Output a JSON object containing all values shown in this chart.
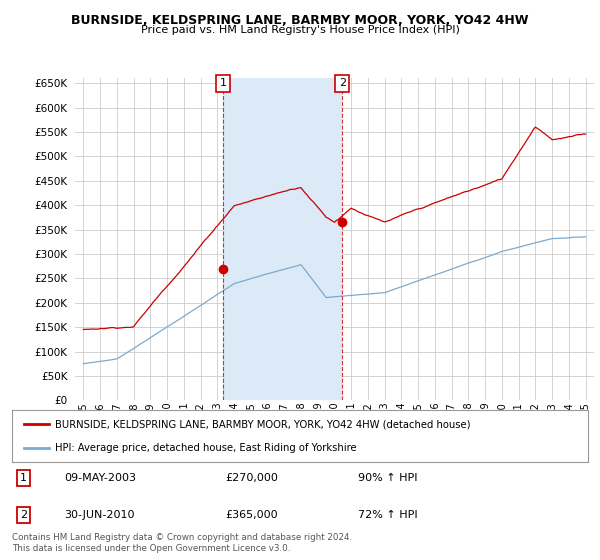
{
  "title": "BURNSIDE, KELDSPRING LANE, BARMBY MOOR, YORK, YO42 4HW",
  "subtitle": "Price paid vs. HM Land Registry's House Price Index (HPI)",
  "background_color": "#ffffff",
  "plot_bg_color": "#ffffff",
  "shade_color": "#dce9f7",
  "red_line_label": "BURNSIDE, KELDSPRING LANE, BARMBY MOOR, YORK, YO42 4HW (detached house)",
  "blue_line_label": "HPI: Average price, detached house, East Riding of Yorkshire",
  "sale1_date": "09-MAY-2003",
  "sale1_price": 270000,
  "sale1_hpi": "90% ↑ HPI",
  "sale2_date": "30-JUN-2010",
  "sale2_price": 365000,
  "sale2_hpi": "72% ↑ HPI",
  "footer": "Contains HM Land Registry data © Crown copyright and database right 2024.\nThis data is licensed under the Open Government Licence v3.0.",
  "ylim": [
    0,
    650000
  ],
  "yticks": [
    0,
    50000,
    100000,
    150000,
    200000,
    250000,
    300000,
    350000,
    400000,
    450000,
    500000,
    550000,
    600000,
    650000
  ],
  "red_color": "#cc0000",
  "blue_color": "#7aaad0",
  "sale1_year": 2003.35,
  "sale2_year": 2010.46
}
